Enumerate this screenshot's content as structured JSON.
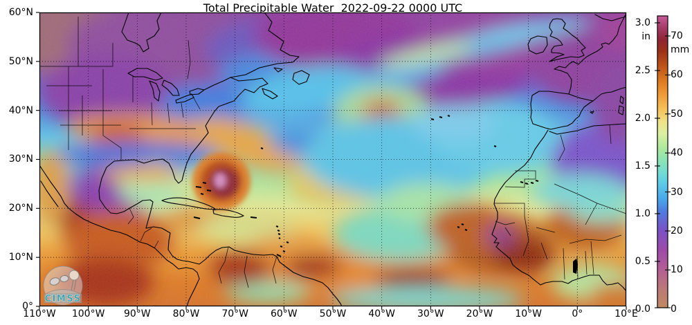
{
  "title": "Total Precipitable Water  2022-09-22 0000 UTC",
  "logo": {
    "text": "CIMSS"
  },
  "axes": {
    "lat_labels": [
      "60°N",
      "50°N",
      "40°N",
      "30°N",
      "20°N",
      "10°N",
      "0°"
    ],
    "lon_labels": [
      "110°W",
      "100°W",
      "90°W",
      "80°W",
      "70°W",
      "60°W",
      "50°W",
      "40°W",
      "30°W",
      "20°W",
      "10°W",
      "0°",
      "10°E"
    ]
  },
  "colorbar": {
    "inch_unit": "in",
    "mm_unit": "mm",
    "inch_ticks": [
      "3.0",
      "2.5",
      "2.0",
      "1.5",
      "1.0",
      "0.5",
      "0.0"
    ],
    "mm_ticks": [
      "70",
      "60",
      "50",
      "40",
      "30",
      "20",
      "10",
      "0"
    ]
  },
  "chart_data": {
    "type": "heatmap",
    "title": "Total Precipitable Water  2022-09-22 0000 UTC",
    "variable": "total precipitable water",
    "valid_time": "2022-09-22 0000 UTC",
    "source_logo": "CIMSS",
    "extent": {
      "lon_min": -110,
      "lon_max": 10,
      "lat_min": 0,
      "lat_max": 60
    },
    "x_ticks_deg": [
      -110,
      -100,
      -90,
      -80,
      -70,
      -60,
      -50,
      -40,
      -30,
      -20,
      -10,
      0,
      10
    ],
    "y_ticks_deg": [
      0,
      10,
      20,
      30,
      40,
      50,
      60
    ],
    "grid": "dotted black graticule every 10 degrees",
    "coastline_color": "#000000",
    "background": "#ffffff",
    "colorbar_scale": {
      "left_units": "inches",
      "left_range": [
        0.0,
        3.0
      ],
      "left_tick_step": 0.5,
      "right_units": "mm",
      "right_range": [
        0,
        70
      ],
      "right_tick_step": 10,
      "colormap_mm_to_hex": [
        {
          "mm": 0,
          "color": "#c08a62"
        },
        {
          "mm": 5,
          "color": "#bb7878"
        },
        {
          "mm": 10,
          "color": "#b25f95"
        },
        {
          "mm": 15,
          "color": "#9c4aaa"
        },
        {
          "mm": 20,
          "color": "#7a52c6"
        },
        {
          "mm": 25,
          "color": "#4f7ce0"
        },
        {
          "mm": 28,
          "color": "#49a7ec"
        },
        {
          "mm": 32,
          "color": "#5ecbe8"
        },
        {
          "mm": 35,
          "color": "#74ddd2"
        },
        {
          "mm": 38,
          "color": "#8ce4b4"
        },
        {
          "mm": 41,
          "color": "#abe99e"
        },
        {
          "mm": 45,
          "color": "#dcf0a0"
        },
        {
          "mm": 48,
          "color": "#f0e187"
        },
        {
          "mm": 51,
          "color": "#f6c35c"
        },
        {
          "mm": 55,
          "color": "#f09a36"
        },
        {
          "mm": 58,
          "color": "#e07e24"
        },
        {
          "mm": 62,
          "color": "#c05618"
        },
        {
          "mm": 66,
          "color": "#9c3217"
        },
        {
          "mm": 69,
          "color": "#8f2433"
        },
        {
          "mm": 72,
          "color": "#a23a64"
        },
        {
          "mm": 75,
          "color": "#c75b9a"
        }
      ]
    },
    "depicted_features": [
      {
        "name": "tropical-cyclone",
        "approx_lon": -72.8,
        "approx_lat": 25.5,
        "description": "Hurricane with pink core >70 mm ringed by 60-70 mm (dark red) and 50-60 mm (orange) moisture"
      },
      {
        "name": "itcz-moisture-band",
        "lat_range": [
          0,
          12
        ],
        "description": "50-70 mm moist band across the tropical Atlantic, Central America, northern South America and West Africa"
      },
      {
        "name": "midlatitude-dry-air",
        "lat_range": [
          45,
          60
        ],
        "description": "10-20 mm (purple/magenta) dry air across the northern Atlantic, Canada, western Europe and Iberia"
      },
      {
        "name": "subtropical-cyan-region",
        "lat_range": [
          20,
          45
        ],
        "description": "25-40 mm (blue/cyan/green) air over the central and eastern Atlantic"
      },
      {
        "name": "us-midwest-moist-plume",
        "description": "45-55 mm orange plume over the central United States near 38N"
      },
      {
        "name": "north-mexico-dry-highlands",
        "description": "15-25 mm purple/blue pocket over the northern Mexican plateau"
      },
      {
        "name": "jet-streak-cyan-band",
        "description": "Narrow 30-40 mm cyan streak arcing from Newfoundland toward the British Isles"
      }
    ]
  }
}
